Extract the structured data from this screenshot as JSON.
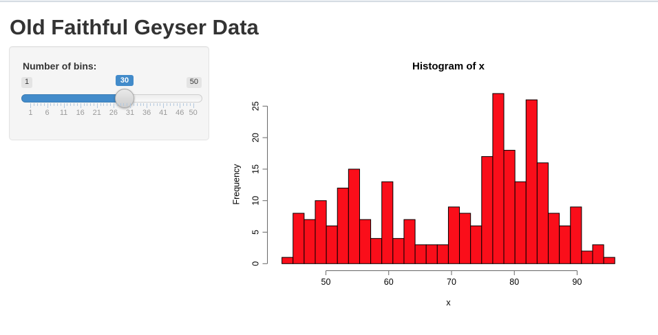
{
  "page": {
    "title": "Old Faithful Geyser Data"
  },
  "sidebar": {
    "slider": {
      "label": "Number of bins:",
      "min": 1,
      "max": 50,
      "value": 30,
      "min_label": "1",
      "max_label": "50",
      "value_label": "30",
      "grid_values": [
        1,
        6,
        11,
        16,
        21,
        26,
        31,
        36,
        41,
        46,
        50
      ],
      "grid_labels": [
        "1",
        "6",
        "11",
        "16",
        "21",
        "26",
        "31",
        "36",
        "41",
        "46",
        "50"
      ],
      "accent_color": "#428bca"
    }
  },
  "chart_data": {
    "type": "bar",
    "subtype": "histogram",
    "title": "Histogram of x",
    "xlabel": "x",
    "ylabel": "Frequency",
    "bin_start": 43,
    "bin_end": 96,
    "bin_count": 30,
    "counts": [
      1,
      8,
      7,
      10,
      6,
      12,
      15,
      7,
      4,
      13,
      4,
      7,
      3,
      3,
      3,
      9,
      8,
      6,
      17,
      27,
      18,
      13,
      26,
      16,
      8,
      6,
      9,
      2,
      3,
      1
    ],
    "x_ticks": [
      50,
      60,
      70,
      80,
      90
    ],
    "y_ticks": [
      0,
      5,
      10,
      15,
      20,
      25
    ],
    "xlim": [
      43,
      96
    ],
    "ylim": [
      0,
      27
    ],
    "grid": false,
    "legend": "none",
    "bar_color": "#fa0e1a",
    "bar_border": "#000000",
    "axis_color": "#666666",
    "text_color": "#000000"
  }
}
